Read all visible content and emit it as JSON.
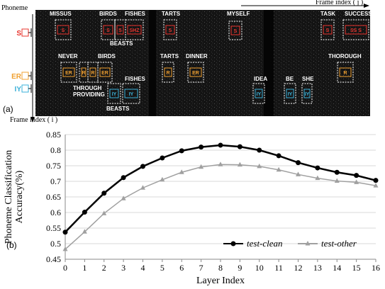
{
  "panel_a": {
    "label": "(a)",
    "y_label": "Phoneme",
    "x_label_top": "Frame index ( j )",
    "x_label_bottom": "Frame index ( i )",
    "phonemes": [
      {
        "label": "S",
        "color": "#e8352e"
      },
      {
        "label": "ER",
        "color": "#f0a030"
      },
      {
        "label": "IY",
        "color": "#3ab0d8"
      }
    ],
    "words": [
      "MISSUS",
      "BIRDS",
      "FISHES",
      "BEASTS",
      "TARTS",
      "MYSELF",
      "TASK",
      "SUCCESS",
      "NEVER",
      "BIRDS",
      "TARTS",
      "DINNER",
      "THOROUGH",
      "THROUGH",
      "PROVIDING",
      "FISHES",
      "BEASTS",
      "IDEA",
      "BE",
      "SHE"
    ],
    "boxes": [
      {
        "label": "S",
        "phoneme": 0
      },
      {
        "label": "S",
        "phoneme": 0
      },
      {
        "label": "S",
        "phoneme": 0
      },
      {
        "label": "SHZ",
        "phoneme": 0
      },
      {
        "label": "S",
        "phoneme": 0
      },
      {
        "label": "S",
        "phoneme": 0
      },
      {
        "label": "S",
        "phoneme": 0
      },
      {
        "label": "SS S",
        "phoneme": 0
      },
      {
        "label": "ER",
        "phoneme": 1
      },
      {
        "label": "R",
        "phoneme": 1
      },
      {
        "label": "R",
        "phoneme": 1
      },
      {
        "label": "ER",
        "phoneme": 1
      },
      {
        "label": "R",
        "phoneme": 1
      },
      {
        "label": "ER",
        "phoneme": 1
      },
      {
        "label": "R",
        "phoneme": 1
      },
      {
        "label": "IY",
        "phoneme": 2
      },
      {
        "label": "IY",
        "phoneme": 2
      },
      {
        "label": "IY",
        "phoneme": 2
      },
      {
        "label": "IY",
        "phoneme": 2
      },
      {
        "label": "IY",
        "phoneme": 2
      }
    ]
  },
  "chart_data": {
    "type": "line",
    "panel_label": "(b)",
    "x_label": "Layer Index",
    "y_label": "Phoneme Classification Accuracy(%)",
    "x": [
      0,
      1,
      2,
      3,
      4,
      5,
      6,
      7,
      8,
      9,
      10,
      11,
      12,
      13,
      14,
      15,
      16
    ],
    "series": [
      {
        "name": "test-clean",
        "color": "#000000",
        "marker": "circle",
        "values": [
          0.537,
          0.601,
          0.662,
          0.712,
          0.748,
          0.775,
          0.798,
          0.81,
          0.816,
          0.811,
          0.8,
          0.782,
          0.76,
          0.743,
          0.729,
          0.719,
          0.703
        ]
      },
      {
        "name": "test-other",
        "color": "#a0a0a0",
        "marker": "triangle",
        "values": [
          0.482,
          0.538,
          0.597,
          0.645,
          0.679,
          0.705,
          0.729,
          0.746,
          0.754,
          0.753,
          0.748,
          0.737,
          0.722,
          0.71,
          0.701,
          0.697,
          0.686
        ]
      }
    ],
    "xlim": [
      0,
      16
    ],
    "xticks": [
      0,
      1,
      2,
      3,
      4,
      5,
      6,
      7,
      8,
      9,
      10,
      11,
      12,
      13,
      14,
      15,
      16
    ],
    "ylim": [
      0.45,
      0.85
    ],
    "yticks": [
      0.45,
      0.5,
      0.55,
      0.6,
      0.65,
      0.7,
      0.75,
      0.8,
      0.85
    ],
    "grid": true,
    "legend": "bottom-right"
  }
}
